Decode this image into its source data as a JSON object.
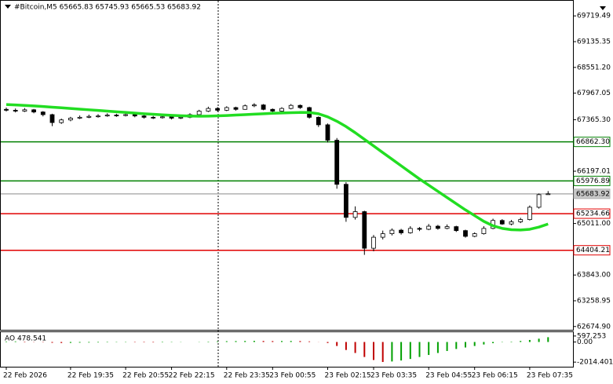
{
  "chart_data": {
    "type": "candlestick",
    "title": "#Bitcoin,M5  65665.83 65745.93 65665.53 65683.92",
    "categories": [
      "22 Feb 2026",
      null,
      null,
      null,
      null,
      null,
      null,
      "22 Feb 19:35",
      null,
      null,
      null,
      null,
      null,
      "22 Feb 20:55",
      null,
      null,
      null,
      null,
      "22 Feb 22:15",
      null,
      null,
      null,
      null,
      null,
      "22 Feb 23:35",
      null,
      null,
      null,
      null,
      "23 Feb 00:55",
      null,
      null,
      null,
      null,
      null,
      "23 Feb 02:15",
      null,
      null,
      null,
      null,
      "23 Feb 03:35",
      null,
      null,
      null,
      null,
      null,
      "23 Feb 04:55",
      null,
      null,
      null,
      null,
      "23 Feb 06:15",
      null,
      null,
      null,
      null,
      null,
      "23 Feb 07:35",
      null,
      null
    ],
    "ohlc": [
      [
        67600,
        67640,
        67550,
        67580
      ],
      [
        67580,
        67620,
        67530,
        67560
      ],
      [
        67560,
        67630,
        67540,
        67590
      ],
      [
        67590,
        67610,
        67510,
        67540
      ],
      [
        67540,
        67560,
        67440,
        67480
      ],
      [
        67480,
        67500,
        67220,
        67300
      ],
      [
        67300,
        67390,
        67270,
        67360
      ],
      [
        67360,
        67430,
        67330,
        67400
      ],
      [
        67400,
        67460,
        67380,
        67420
      ],
      [
        67420,
        67480,
        67400,
        67440
      ],
      [
        67440,
        67490,
        67410,
        67450
      ],
      [
        67450,
        67510,
        67430,
        67470
      ],
      [
        67470,
        67500,
        67430,
        67460
      ],
      [
        67460,
        67520,
        67440,
        67480
      ],
      [
        67480,
        67500,
        67420,
        67450
      ],
      [
        67450,
        67470,
        67390,
        67420
      ],
      [
        67420,
        67450,
        67380,
        67410
      ],
      [
        67410,
        67460,
        67390,
        67430
      ],
      [
        67430,
        67450,
        67370,
        67400
      ],
      [
        67400,
        67450,
        67380,
        67420
      ],
      [
        67420,
        67510,
        67400,
        67480
      ],
      [
        67480,
        67590,
        67460,
        67560
      ],
      [
        67560,
        67660,
        67540,
        67620
      ],
      [
        67620,
        67650,
        67550,
        67580
      ],
      [
        67580,
        67670,
        67560,
        67640
      ],
      [
        67640,
        67660,
        67570,
        67600
      ],
      [
        67600,
        67710,
        67590,
        67680
      ],
      [
        67680,
        67740,
        67650,
        67700
      ],
      [
        67700,
        67720,
        67580,
        67600
      ],
      [
        67600,
        67620,
        67530,
        67560
      ],
      [
        67560,
        67650,
        67540,
        67620
      ],
      [
        67620,
        67720,
        67600,
        67690
      ],
      [
        67690,
        67710,
        67610,
        67640
      ],
      [
        67640,
        67660,
        67390,
        67420
      ],
      [
        67420,
        67440,
        67200,
        67250
      ],
      [
        67250,
        67280,
        66850,
        66900
      ],
      [
        66900,
        66950,
        65800,
        65900
      ],
      [
        65900,
        65950,
        65050,
        65150
      ],
      [
        65150,
        65400,
        65100,
        65280
      ],
      [
        65280,
        65300,
        64300,
        64450
      ],
      [
        64450,
        64750,
        64380,
        64700
      ],
      [
        64700,
        64850,
        64650,
        64780
      ],
      [
        64780,
        64900,
        64740,
        64860
      ],
      [
        64860,
        64890,
        64760,
        64800
      ],
      [
        64800,
        64950,
        64780,
        64900
      ],
      [
        64900,
        64930,
        64840,
        64880
      ],
      [
        64880,
        65000,
        64860,
        64950
      ],
      [
        64950,
        64980,
        64870,
        64900
      ],
      [
        64900,
        64990,
        64880,
        64940
      ],
      [
        64940,
        64960,
        64820,
        64850
      ],
      [
        64850,
        64870,
        64690,
        64720
      ],
      [
        64720,
        64810,
        64700,
        64780
      ],
      [
        64780,
        64950,
        64760,
        64900
      ],
      [
        64900,
        65120,
        64880,
        65080
      ],
      [
        65080,
        65110,
        64980,
        65000
      ],
      [
        65000,
        65090,
        64970,
        65050
      ],
      [
        65050,
        65140,
        65020,
        65100
      ],
      [
        65100,
        65420,
        65080,
        65380
      ],
      [
        65380,
        65690,
        65350,
        65665.83
      ],
      [
        65665.83,
        65745.93,
        65665.53,
        65683.92
      ]
    ],
    "colors": {
      "up": "#ffffff",
      "down": "#000000",
      "outline": "#000000"
    },
    "ylim": [
      62600,
      70080
    ],
    "yticks": [
      69719.49,
      69135.35,
      {
        "value": 68551.2,
        "label": "68551.20"
      },
      67967.05,
      {
        "value": 67365.3,
        "label": "67365.30"
      },
      66197.01,
      {
        "value": 65011,
        "label": "65011.00"
      },
      {
        "value": 63843,
        "label": "63843.00"
      },
      63258.95,
      {
        "value": 62674.9,
        "label": "62674.90"
      }
    ],
    "ma": {
      "color": "#22dd22",
      "values": [
        67709,
        67700,
        67690,
        67678,
        67665,
        67650,
        67635,
        67620,
        67605,
        67590,
        67575,
        67560,
        67545,
        67530,
        67515,
        67500,
        67488,
        67476,
        67465,
        67455,
        67448,
        67444,
        67446,
        67452,
        67460,
        67470,
        67480,
        67490,
        67500,
        67510,
        67518,
        67525,
        67530,
        67528,
        67500,
        67430,
        67330,
        67210,
        67070,
        66920,
        66770,
        66620,
        66470,
        66320,
        66170,
        66020,
        65880,
        65740,
        65600,
        65460,
        65320,
        65190,
        65060,
        64960,
        64900,
        64870,
        64865,
        64880,
        64930,
        65000
      ]
    },
    "levels": [
      {
        "value": 66862.3,
        "label": "66862.30",
        "color": "#008000"
      },
      {
        "value": 65976.89,
        "label": "65976.89",
        "color": "#008000"
      },
      {
        "value": 65234.66,
        "label": "65234.66",
        "color": "#e00000"
      },
      {
        "value": 64404.21,
        "label": "64404.21",
        "color": "#e00000"
      }
    ],
    "last_price": {
      "value": 65683.92,
      "label": "65683.92",
      "color": "#b0b0b0"
    },
    "oscillator": {
      "label": "AO 478.541",
      "up_color": "#00a000",
      "down_color": "#c00000",
      "values": [
        50,
        60,
        40,
        20,
        -30,
        -80,
        -100,
        -90,
        -70,
        -60,
        -50,
        -40,
        -30,
        -30,
        -35,
        -40,
        -45,
        -40,
        -30,
        -20,
        0,
        20,
        40,
        60,
        80,
        90,
        100,
        110,
        100,
        90,
        95,
        100,
        90,
        60,
        10,
        -100,
        -400,
        -800,
        -1100,
        -1500,
        -1800,
        -2000,
        -1950,
        -1850,
        -1700,
        -1500,
        -1300,
        -1100,
        -900,
        -700,
        -550,
        -400,
        -250,
        -120,
        -30,
        40,
        100,
        200,
        330,
        478.541
      ],
      "ylim": [
        -2475,
        981
      ],
      "yticks": [
        597.253,
        {
          "value": 0,
          "label": "0.00"
        },
        -2014.401
      ]
    }
  }
}
